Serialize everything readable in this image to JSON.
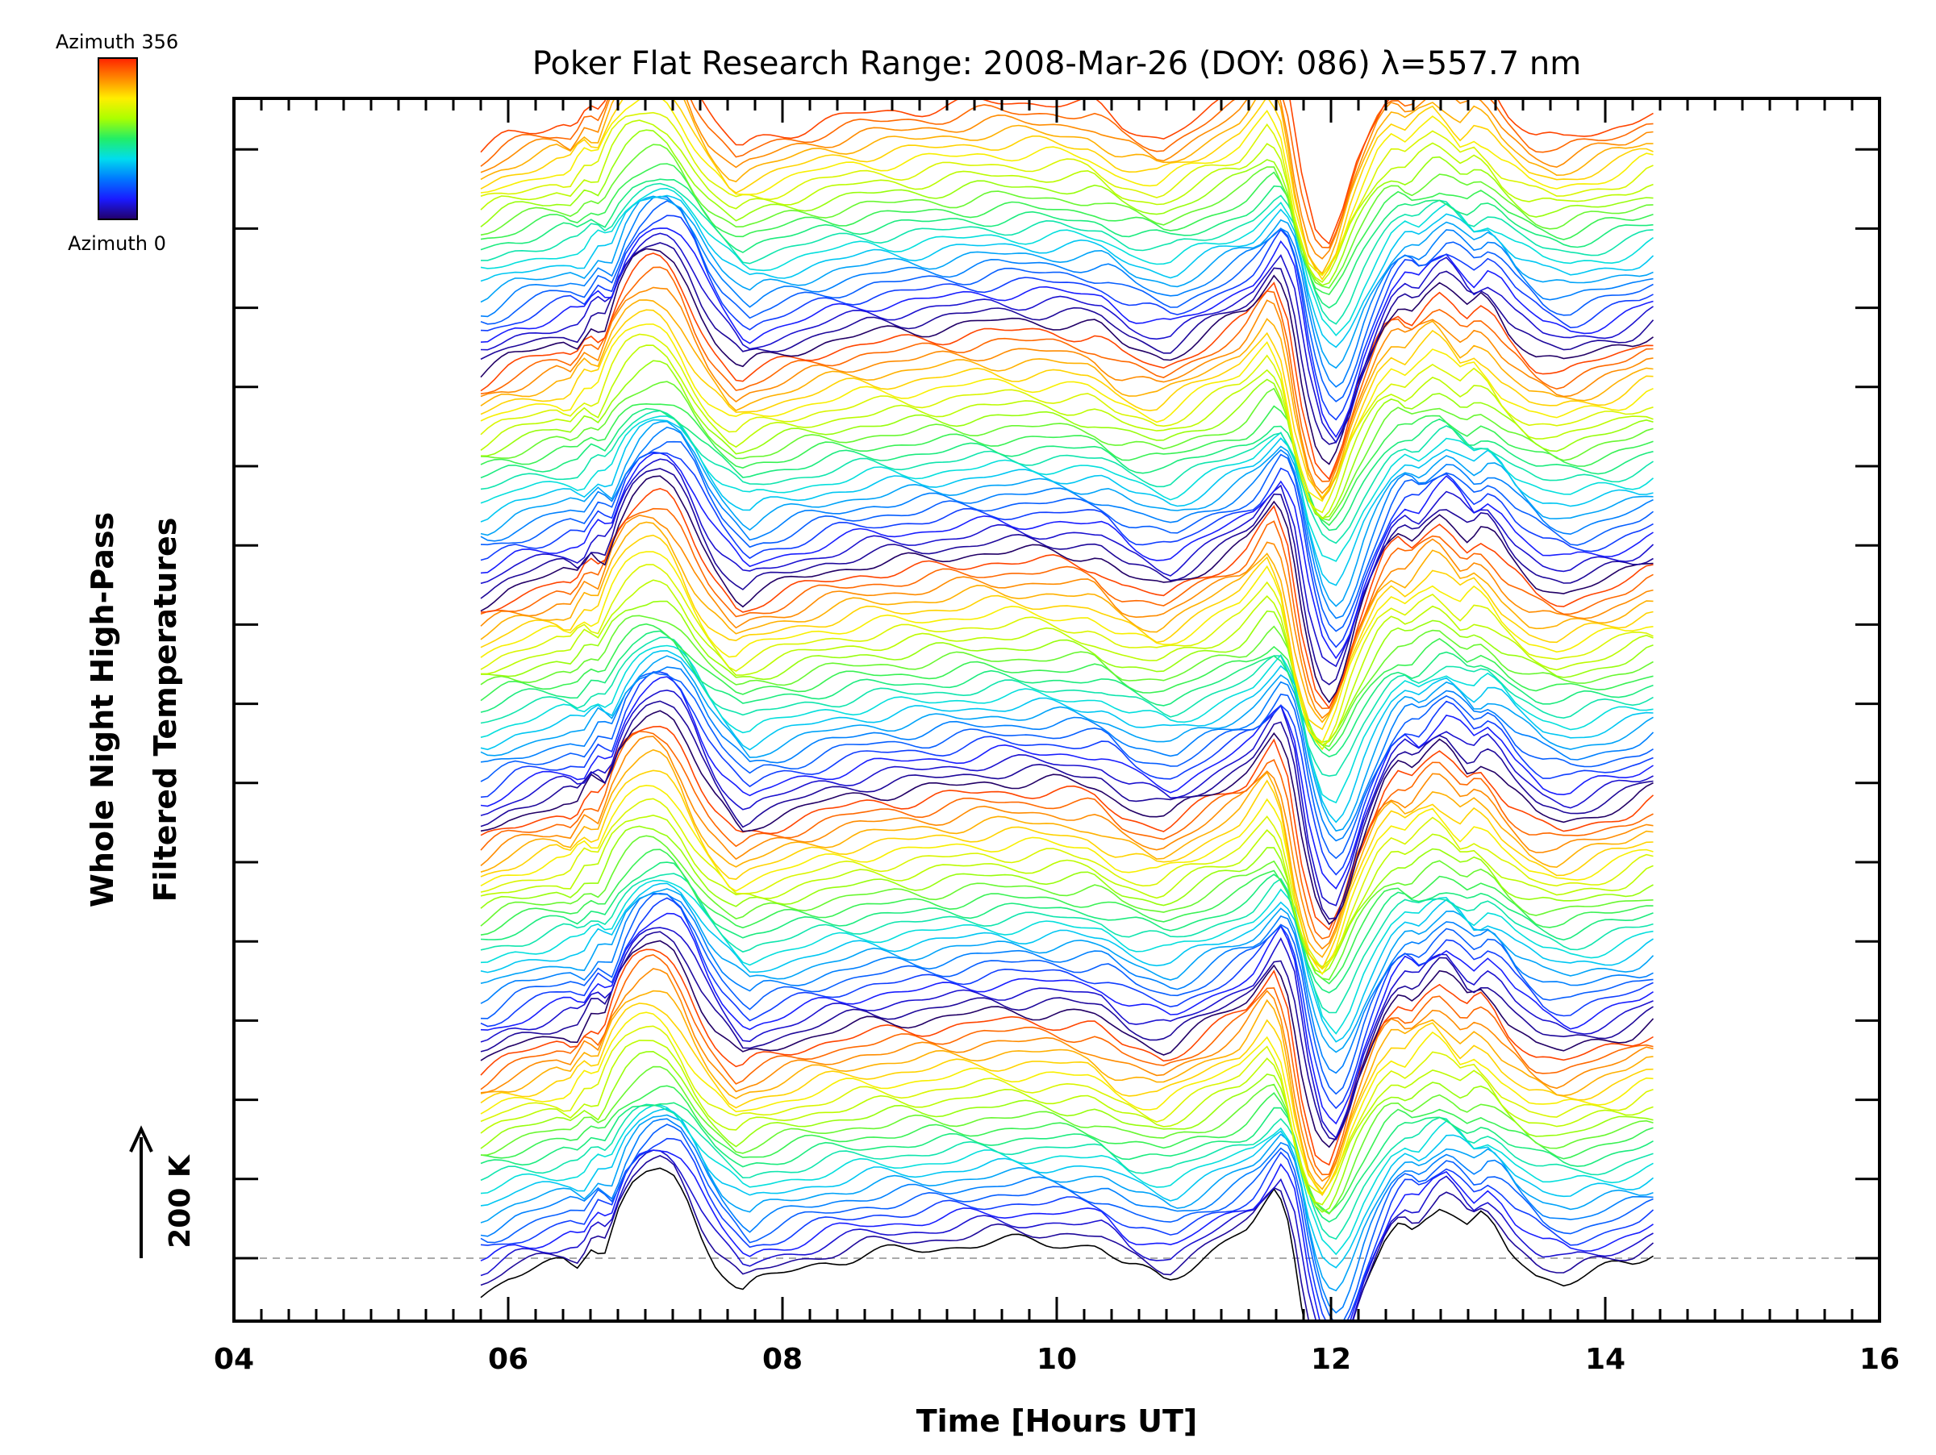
{
  "chart_data": {
    "type": "line",
    "title": "Poker Flat Research Range: 2008-Mar-26 (DOY: 086) λ=557.7 nm",
    "xlabel": "Time [Hours UT]",
    "ylabel_line1": "Whole Night High-Pass",
    "ylabel_line2": "Filtered Temperatures",
    "xlim": [
      4,
      16
    ],
    "x_ticks": [
      4,
      6,
      8,
      10,
      12,
      14,
      16
    ],
    "x_tick_labels": [
      "04",
      "06",
      "08",
      "10",
      "12",
      "14",
      "16"
    ],
    "x_start": 5.8,
    "x_end": 14.35,
    "n_traces": 115,
    "azimuth_range": [
      0,
      356
    ],
    "colorbar": {
      "top_label": "Azimuth 356",
      "bottom_label": "Azimuth 0",
      "colors": [
        "#ff2200",
        "#ff8800",
        "#ffee00",
        "#aaff00",
        "#22ee66",
        "#00ddee",
        "#0077ff",
        "#1a1aff",
        "#220066"
      ]
    },
    "scale_bar": {
      "label": "200 K"
    },
    "grid": false,
    "baseline": "dashed",
    "profile": {
      "x": [
        5.8,
        6.0,
        6.2,
        6.4,
        6.5,
        6.6,
        6.7,
        6.8,
        6.9,
        7.0,
        7.1,
        7.2,
        7.3,
        7.4,
        7.5,
        7.6,
        7.7,
        7.8,
        8.0,
        8.3,
        8.6,
        9.0,
        9.5,
        10.0,
        10.3,
        10.5,
        10.8,
        11.0,
        11.2,
        11.4,
        11.5,
        11.6,
        11.7,
        11.8,
        11.9,
        12.0,
        12.1,
        12.2,
        12.3,
        12.4,
        12.5,
        12.6,
        12.7,
        12.8,
        12.9,
        13.0,
        13.1,
        13.2,
        13.3,
        13.5,
        13.7,
        14.0,
        14.2,
        14.35
      ],
      "y": [
        -45,
        -25,
        -15,
        -5,
        -10,
        20,
        10,
        60,
        90,
        105,
        110,
        100,
        70,
        30,
        0,
        -20,
        -40,
        -30,
        -20,
        -5,
        5,
        10,
        20,
        20,
        15,
        -10,
        -25,
        -5,
        15,
        35,
        60,
        85,
        40,
        -70,
        -140,
        -160,
        -120,
        -60,
        -15,
        25,
        45,
        35,
        55,
        70,
        55,
        35,
        50,
        35,
        10,
        -20,
        -30,
        -15,
        -5,
        10
      ]
    }
  }
}
